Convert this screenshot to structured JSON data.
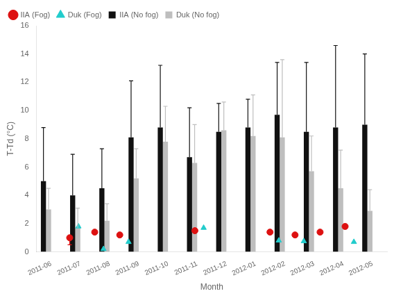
{
  "chart_data": {
    "type": "bar",
    "categories": [
      "2011-06",
      "2011-07",
      "2011-08",
      "2011-09",
      "2011-10",
      "2011-11",
      "2011-12",
      "2012-01",
      "2012-02",
      "2012-03",
      "2012-04",
      "2012-05"
    ],
    "xlabel": "Month",
    "ylabel": "T-Td (°C)",
    "ylim": [
      0,
      16
    ],
    "yticks": [
      0,
      2,
      4,
      6,
      8,
      10,
      12,
      14,
      16
    ],
    "grid": false,
    "legend": "upper left",
    "series": [
      {
        "name": "IIA (No fog)",
        "type": "bar",
        "color": "#111111",
        "values": [
          5.0,
          4.0,
          4.5,
          8.1,
          8.8,
          6.7,
          8.5,
          8.8,
          9.7,
          8.5,
          8.8,
          9.0
        ],
        "error_high": [
          3.8,
          2.9,
          2.8,
          4.0,
          4.4,
          3.5,
          2.0,
          2.0,
          3.7,
          4.9,
          5.8,
          5.0
        ]
      },
      {
        "name": "Duk (No fog)",
        "type": "bar",
        "color": "#bebebe",
        "values": [
          3.0,
          1.7,
          2.2,
          5.2,
          7.8,
          6.3,
          8.6,
          8.2,
          8.1,
          5.7,
          4.5,
          2.9
        ],
        "error_high": [
          1.5,
          1.4,
          1.2,
          2.1,
          2.5,
          2.7,
          2.0,
          2.9,
          5.5,
          2.5,
          2.7,
          1.5
        ]
      },
      {
        "name": "IIA (Fog)",
        "type": "scatter",
        "marker": "circle",
        "color": "#dd1111",
        "values": [
          1.0,
          1.4,
          1.2,
          null,
          null,
          1.5,
          null,
          null,
          1.4,
          1.2,
          1.4,
          1.8
        ],
        "error_low": [
          0.5,
          0,
          0,
          0,
          0,
          0,
          0,
          0,
          0,
          0,
          0,
          0
        ]
      },
      {
        "name": "Duk (Fog)",
        "type": "scatter",
        "marker": "triangle",
        "color": "#22cccc",
        "values": [
          1.8,
          0.2,
          0.7,
          null,
          null,
          1.7,
          null,
          null,
          0.8,
          0.75,
          null,
          0.7
        ]
      }
    ]
  }
}
